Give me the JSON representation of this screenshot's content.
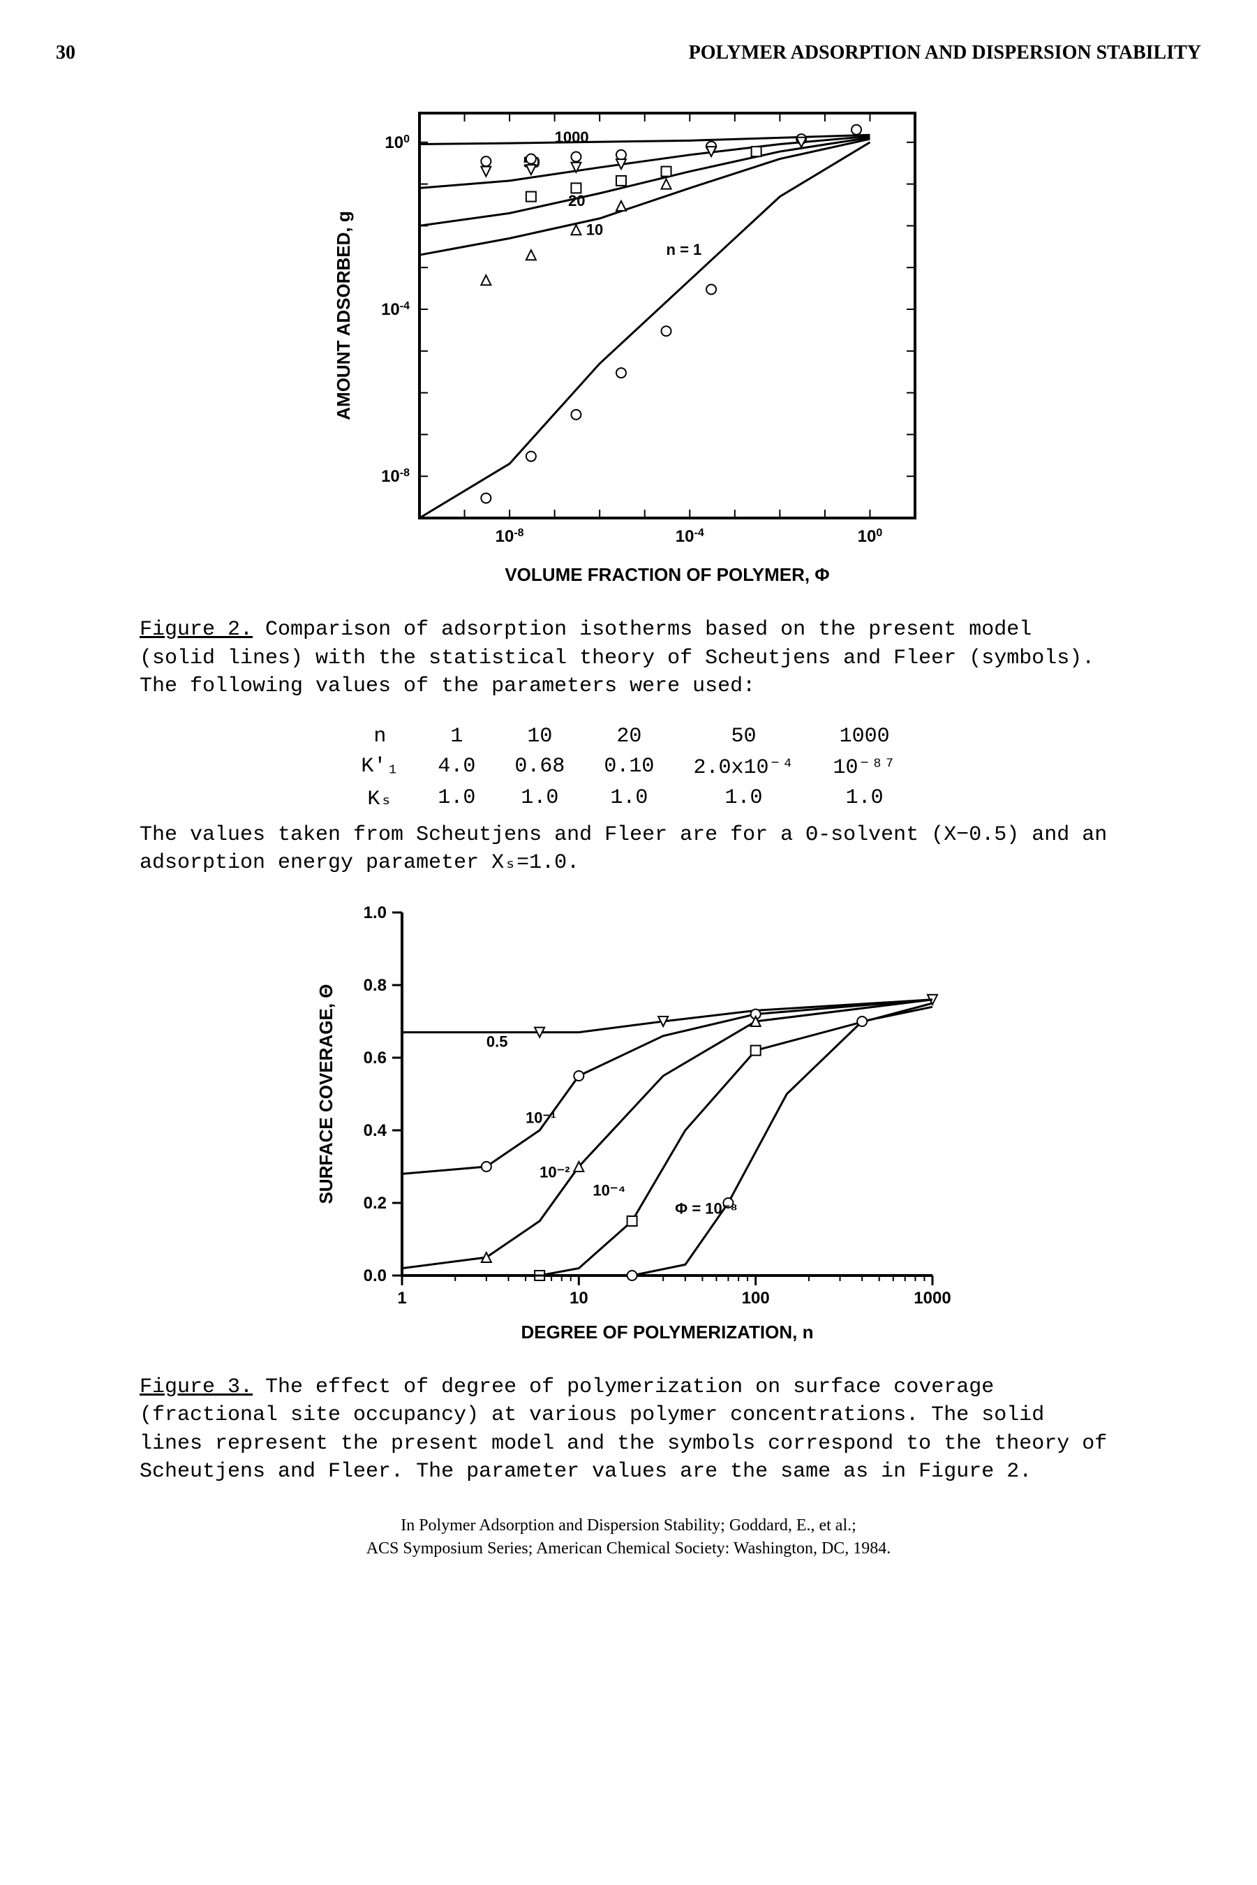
{
  "header": {
    "page_number": "30",
    "running_title": "POLYMER ADSORPTION AND DISPERSION STABILITY"
  },
  "figure2": {
    "type": "line+scatter",
    "ylabel": "AMOUNT ADSORBED, g",
    "xlabel": "VOLUME FRACTION OF POLYMER, Φ",
    "xlog": true,
    "ylog": true,
    "xlim": [
      1e-10,
      10
    ],
    "ylim": [
      1e-09,
      5
    ],
    "xticks_exp": [
      -8,
      -4,
      0
    ],
    "yticks_exp": [
      -8,
      -4,
      0
    ],
    "background_color": "#ffffff",
    "axis_color": "#000000",
    "line_color": "#000000",
    "line_width": 3,
    "label_fontsize": 20,
    "tick_fontsize": 18,
    "series": [
      {
        "n": "1000",
        "label_pos": [
          1e-07,
          1.0
        ],
        "line": [
          [
            1e-10,
            0.9
          ],
          [
            1e-08,
            0.95
          ],
          [
            0.0001,
            1.1
          ],
          [
            1,
            1.5
          ]
        ],
        "marker": "none"
      },
      {
        "n": "50",
        "label_pos": [
          2e-08,
          0.25
        ],
        "line": [
          [
            1e-10,
            0.08
          ],
          [
            1e-08,
            0.12
          ],
          [
            1e-06,
            0.25
          ],
          [
            0.0001,
            0.5
          ],
          [
            0.01,
            0.9
          ],
          [
            1,
            1.4
          ]
        ],
        "marker": "square_open"
      },
      {
        "n": "20",
        "label_pos": [
          2e-07,
          0.03
        ],
        "line": [
          [
            1e-10,
            0.01
          ],
          [
            1e-08,
            0.02
          ],
          [
            1e-06,
            0.06
          ],
          [
            0.0001,
            0.2
          ],
          [
            0.01,
            0.6
          ],
          [
            1,
            1.3
          ]
        ],
        "marker": "triangle_open_down"
      },
      {
        "n": "10",
        "label_pos": [
          5e-07,
          0.006
        ],
        "line": [
          [
            1e-10,
            0.002
          ],
          [
            1e-08,
            0.005
          ],
          [
            1e-06,
            0.015
          ],
          [
            0.0001,
            0.08
          ],
          [
            0.01,
            0.4
          ],
          [
            1,
            1.2
          ]
        ],
        "marker": "triangle_open_up"
      },
      {
        "n": "1",
        "label": "n = 1",
        "label_pos": [
          3e-05,
          0.002
        ],
        "line": [
          [
            1e-10,
            1e-09
          ],
          [
            1e-08,
            2e-08
          ],
          [
            1e-06,
            5e-06
          ],
          [
            0.0001,
            0.0005
          ],
          [
            0.01,
            0.05
          ],
          [
            1,
            1.0
          ]
        ],
        "marker": "circle_open"
      }
    ],
    "scatter_points": {
      "circle_open": [
        [
          3e-09,
          0.35
        ],
        [
          3e-08,
          0.4
        ],
        [
          3e-07,
          0.45
        ],
        [
          3e-06,
          0.5
        ],
        [
          0.0003,
          0.8
        ],
        [
          0.03,
          1.2
        ],
        [
          0.5,
          2.0
        ]
      ],
      "triangle_down": [
        [
          3e-09,
          0.2
        ],
        [
          3e-08,
          0.22
        ],
        [
          3e-07,
          0.25
        ],
        [
          3e-06,
          0.3
        ],
        [
          0.0003,
          0.6
        ],
        [
          0.03,
          1.0
        ]
      ],
      "square_open": [
        [
          3e-08,
          0.05
        ],
        [
          3e-07,
          0.08
        ],
        [
          3e-06,
          0.12
        ],
        [
          3e-05,
          0.2
        ],
        [
          0.003,
          0.6
        ]
      ],
      "triangle_up": [
        [
          3e-09,
          0.0005
        ],
        [
          3e-08,
          0.002
        ],
        [
          3e-07,
          0.008
        ],
        [
          3e-06,
          0.03
        ],
        [
          3e-05,
          0.1
        ]
      ],
      "circle_n1": [
        [
          3e-09,
          3e-09
        ],
        [
          3e-08,
          3e-08
        ],
        [
          3e-07,
          3e-07
        ],
        [
          3e-06,
          3e-06
        ],
        [
          3e-05,
          3e-05
        ],
        [
          0.0003,
          0.0003
        ]
      ]
    },
    "caption_label": "Figure 2.",
    "caption_text": "Comparison of adsorption isotherms based on the present model (solid lines) with the statistical theory of Scheutjens and Fleer (symbols). The following values of the parameters were used:",
    "param_table": {
      "columns": [
        "n",
        "1",
        "10",
        "20",
        "50",
        "1000"
      ],
      "rows": [
        [
          "K'₁",
          "4.0",
          "0.68",
          "0.10",
          "2.0x10⁻⁴",
          "10⁻⁸⁷"
        ],
        [
          "Kₛ",
          "1.0",
          "1.0",
          "1.0",
          "1.0",
          "1.0"
        ]
      ]
    },
    "caption_tail": "The values taken from Scheutjens and Fleer are for a Θ-solvent (X−0.5) and an adsorption energy parameter Xₛ=1.0."
  },
  "figure3": {
    "type": "line+scatter",
    "ylabel": "SURFACE COVERAGE, Θ",
    "xlabel": "DEGREE OF POLYMERIZATION,  n",
    "xlog": true,
    "ylog": false,
    "xlim": [
      1,
      1000
    ],
    "ylim": [
      0,
      1.0
    ],
    "xticks": [
      1,
      10,
      100,
      1000
    ],
    "yticks": [
      0,
      0.2,
      0.4,
      0.6,
      0.8,
      1.0
    ],
    "background_color": "#ffffff",
    "axis_color": "#000000",
    "line_color": "#000000",
    "line_width": 3,
    "label_fontsize": 20,
    "tick_fontsize": 18,
    "series": [
      {
        "phi": "0.5",
        "label_pos": [
          3,
          0.63
        ],
        "line": [
          [
            1,
            0.67
          ],
          [
            6,
            0.67
          ],
          [
            10,
            0.67
          ],
          [
            30,
            0.7
          ],
          [
            100,
            0.73
          ],
          [
            1000,
            0.76
          ]
        ],
        "marker": "triangle_open_down"
      },
      {
        "phi": "10⁻¹",
        "label_pos": [
          5,
          0.42
        ],
        "line": [
          [
            1,
            0.28
          ],
          [
            3,
            0.3
          ],
          [
            6,
            0.4
          ],
          [
            10,
            0.55
          ],
          [
            30,
            0.66
          ],
          [
            100,
            0.72
          ],
          [
            1000,
            0.76
          ]
        ],
        "marker": "circle_open"
      },
      {
        "phi": "10⁻²",
        "label_pos": [
          6,
          0.27
        ],
        "line": [
          [
            1,
            0.02
          ],
          [
            3,
            0.05
          ],
          [
            6,
            0.15
          ],
          [
            10,
            0.3
          ],
          [
            30,
            0.55
          ],
          [
            100,
            0.7
          ],
          [
            1000,
            0.76
          ]
        ],
        "marker": "triangle_open_up"
      },
      {
        "phi": "10⁻⁴",
        "label_pos": [
          12,
          0.22
        ],
        "line": [
          [
            1,
            0.0
          ],
          [
            6,
            0.0
          ],
          [
            10,
            0.02
          ],
          [
            20,
            0.15
          ],
          [
            40,
            0.4
          ],
          [
            100,
            0.62
          ],
          [
            1000,
            0.75
          ]
        ],
        "marker": "square_open"
      },
      {
        "phi": "Φ = 10⁻⁸",
        "label_pos": [
          35,
          0.17
        ],
        "line": [
          [
            1,
            0.0
          ],
          [
            20,
            0.0
          ],
          [
            40,
            0.03
          ],
          [
            70,
            0.2
          ],
          [
            150,
            0.5
          ],
          [
            400,
            0.7
          ],
          [
            1000,
            0.74
          ]
        ],
        "marker": "circle_open2"
      }
    ],
    "caption_label": "Figure 3.",
    "caption_text": "The effect of degree of polymerization on surface coverage (fractional site occupancy) at various polymer concentrations.  The solid lines represent the present model and the symbols correspond to the theory of Scheutjens and Fleer.  The parameter values are the same as in Figure 2."
  },
  "footer": {
    "line1": "In Polymer Adsorption and Dispersion Stability; Goddard, E., et al.;",
    "line2": "ACS Symposium Series; American Chemical Society: Washington, DC, 1984."
  }
}
